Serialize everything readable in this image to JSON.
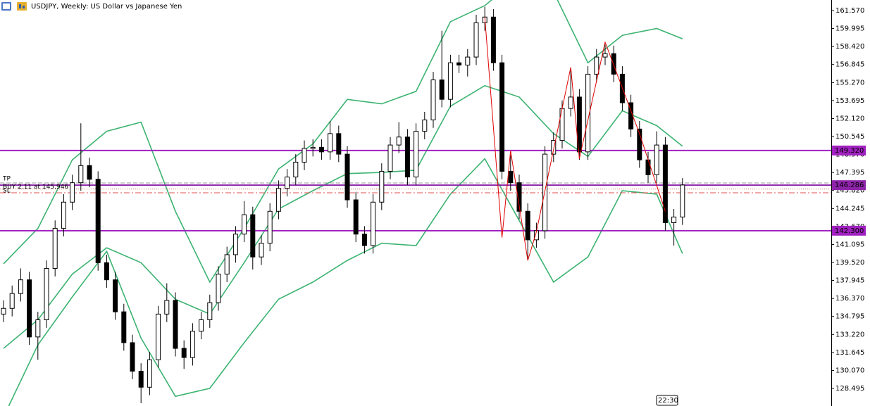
{
  "chart_data": {
    "type": "candlestick",
    "title": "USDJPY, Weekly:  US Dollar vs Japanese Yen",
    "open": [
      135.0,
      135.5,
      136.8,
      138.0,
      133.0,
      134.5,
      139.0,
      142.5,
      144.8,
      146.5,
      148.0,
      146.8,
      139.5,
      138.0,
      135.2,
      132.5,
      130.0,
      128.6,
      131.0,
      135.0,
      136.2,
      132.0,
      131.2,
      133.5,
      134.5,
      136.0,
      138.5,
      140.2,
      142.0,
      143.7,
      140.0,
      141.2,
      144.0,
      146.0,
      147.0,
      148.3,
      149.5,
      149.6,
      149.2,
      150.8,
      149.0,
      145.0,
      142.0,
      141.0,
      144.8,
      147.5,
      149.8,
      150.5,
      147.0,
      151.0,
      152.0,
      155.5,
      153.8,
      157.0,
      156.8,
      157.5,
      160.5,
      161.0,
      157.0,
      147.5,
      146.5,
      144.0,
      141.5,
      142.3,
      149.0,
      150.2,
      153.0,
      154.0,
      149.2,
      156.0,
      157.5,
      157.8,
      156.0,
      153.5,
      151.2,
      148.5,
      147.2,
      149.8,
      143.0,
      143.5
    ],
    "high": [
      136.2,
      137.5,
      139.0,
      138.7,
      135.2,
      139.7,
      143.2,
      145.5,
      147.2,
      151.7,
      148.7,
      147.5,
      140.2,
      138.7,
      135.9,
      133.2,
      130.7,
      131.7,
      135.7,
      137.7,
      136.9,
      132.7,
      134.2,
      135.2,
      136.7,
      139.2,
      140.9,
      142.7,
      144.9,
      144.4,
      141.9,
      144.7,
      146.7,
      147.7,
      149.0,
      150.2,
      150.3,
      150.3,
      151.9,
      151.5,
      149.7,
      145.7,
      142.7,
      145.5,
      148.2,
      150.5,
      151.8,
      151.2,
      151.7,
      152.7,
      156.2,
      159.8,
      157.7,
      157.7,
      158.2,
      161.2,
      161.9,
      161.7,
      157.7,
      148.9,
      147.2,
      144.7,
      143.0,
      149.7,
      150.9,
      153.7,
      156.5,
      154.7,
      156.7,
      158.2,
      158.6,
      158.5,
      156.7,
      154.2,
      151.9,
      149.2,
      151.0,
      150.5,
      144.2,
      146.9
    ],
    "low": [
      134.3,
      134.8,
      136.1,
      132.3,
      131.0,
      133.8,
      138.3,
      141.8,
      144.1,
      145.8,
      146.1,
      138.8,
      137.3,
      134.5,
      131.8,
      129.3,
      127.2,
      127.9,
      130.3,
      134.3,
      131.3,
      130.2,
      130.5,
      132.8,
      133.8,
      135.3,
      137.8,
      139.5,
      141.3,
      138.9,
      139.3,
      140.5,
      143.3,
      145.3,
      146.3,
      147.6,
      148.8,
      148.5,
      148.5,
      148.3,
      144.3,
      141.3,
      140.3,
      140.3,
      144.1,
      146.8,
      149.1,
      146.3,
      146.3,
      150.3,
      151.3,
      153.1,
      153.1,
      156.1,
      155.8,
      156.8,
      159.8,
      156.3,
      146.8,
      145.8,
      143.3,
      139.7,
      140.8,
      141.6,
      148.3,
      149.5,
      152.3,
      148.5,
      148.5,
      155.3,
      156.8,
      155.3,
      152.8,
      150.5,
      147.8,
      146.5,
      146.5,
      142.3,
      141.0,
      142.8
    ],
    "close": [
      135.5,
      136.8,
      138.0,
      133.0,
      134.5,
      139.0,
      142.5,
      144.8,
      146.5,
      148.0,
      146.8,
      139.5,
      138.0,
      135.2,
      132.5,
      130.0,
      128.6,
      131.0,
      135.0,
      136.2,
      132.0,
      131.2,
      133.5,
      134.5,
      136.0,
      138.5,
      140.2,
      142.0,
      143.7,
      140.0,
      141.2,
      144.0,
      146.0,
      147.0,
      148.3,
      149.5,
      149.6,
      149.2,
      150.8,
      149.0,
      145.0,
      142.0,
      141.0,
      144.8,
      147.5,
      149.8,
      150.5,
      147.0,
      151.0,
      152.0,
      155.5,
      153.8,
      157.0,
      156.8,
      157.5,
      160.5,
      161.0,
      157.0,
      147.5,
      146.5,
      144.0,
      141.5,
      142.3,
      149.0,
      150.2,
      153.0,
      154.0,
      149.2,
      156.0,
      157.5,
      157.8,
      156.0,
      153.5,
      151.2,
      148.5,
      147.2,
      149.8,
      143.0,
      143.5,
      146.3
    ],
    "bullish_color": "#ffffff",
    "bearish_color": "#000000",
    "bollinger": {
      "color": "#3cb371",
      "x": [
        0,
        4,
        8,
        12,
        16,
        20,
        24,
        28,
        32,
        36,
        40,
        44,
        48,
        52,
        56,
        60,
        64,
        68,
        72,
        76,
        79
      ],
      "upper": [
        139.4,
        142.5,
        148.5,
        151.0,
        151.8,
        144.0,
        137.8,
        142.5,
        147.7,
        149.9,
        153.8,
        153.4,
        154.5,
        160.6,
        162.0,
        164.5,
        163.2,
        157.0,
        159.4,
        160.0,
        159.1
      ],
      "middle": [
        132.0,
        134.5,
        138.5,
        140.8,
        139.5,
        136.3,
        135.0,
        139.5,
        144.2,
        145.8,
        147.3,
        147.4,
        147.6,
        153.2,
        155.0,
        154.0,
        150.8,
        148.8,
        152.8,
        151.5,
        149.7
      ],
      "lower": [
        126.0,
        132.3,
        136.5,
        140.5,
        132.9,
        127.8,
        128.5,
        132.5,
        136.3,
        137.8,
        139.7,
        141.2,
        141.0,
        145.5,
        148.6,
        143.2,
        137.8,
        140.0,
        145.8,
        145.5,
        140.3
      ]
    },
    "zigzag": {
      "color": "#e00000",
      "x": [
        56,
        58,
        59,
        61,
        62,
        66,
        67,
        70,
        74,
        77
      ],
      "values": [
        161.0,
        141.7,
        149.3,
        139.7,
        142.2,
        156.6,
        148.6,
        158.8,
        150.8,
        144.0
      ]
    },
    "levels": [
      {
        "value": 149.32,
        "label": "149.320",
        "color": "#a020c0"
      },
      {
        "value": 146.286,
        "label": "146.286",
        "color": "#8e24aa"
      },
      {
        "value": 142.3,
        "label": "142.300",
        "color": "#a020c0"
      }
    ],
    "trade": {
      "tp": 146.48,
      "tp_label": "TP",
      "entry": 145.946,
      "entry_label": "BUY 2.11 at 145.946",
      "sl": 145.62,
      "sl_label": "SL"
    },
    "time_label": "22:30",
    "ylim": [
      126.955,
      162.494
    ],
    "yticks": [
      {
        "value": 128.495,
        "label": "128.495"
      },
      {
        "value": 130.07,
        "label": "130.070"
      },
      {
        "value": 131.645,
        "label": "131.645"
      },
      {
        "value": 133.22,
        "label": "133.220"
      },
      {
        "value": 134.795,
        "label": "134.795"
      },
      {
        "value": 136.37,
        "label": "136.370"
      },
      {
        "value": 137.945,
        "label": "137.945"
      },
      {
        "value": 139.52,
        "label": "139.520"
      },
      {
        "value": 141.095,
        "label": "141.095"
      },
      {
        "value": 142.67,
        "label": "142.670"
      },
      {
        "value": 144.245,
        "label": "144.245"
      },
      {
        "value": 145.82,
        "label": "145.820"
      },
      {
        "value": 147.395,
        "label": "147.395"
      },
      {
        "value": 148.97,
        "label": "148.970"
      },
      {
        "value": 150.545,
        "label": "150.545"
      },
      {
        "value": 152.12,
        "label": "152.120"
      },
      {
        "value": 153.695,
        "label": "153.695"
      },
      {
        "value": 155.27,
        "label": "155.270"
      },
      {
        "value": 156.845,
        "label": "156.845"
      },
      {
        "value": 158.42,
        "label": "158.420"
      },
      {
        "value": 159.995,
        "label": "159.995"
      },
      {
        "value": 161.57,
        "label": "161.570"
      }
    ]
  }
}
